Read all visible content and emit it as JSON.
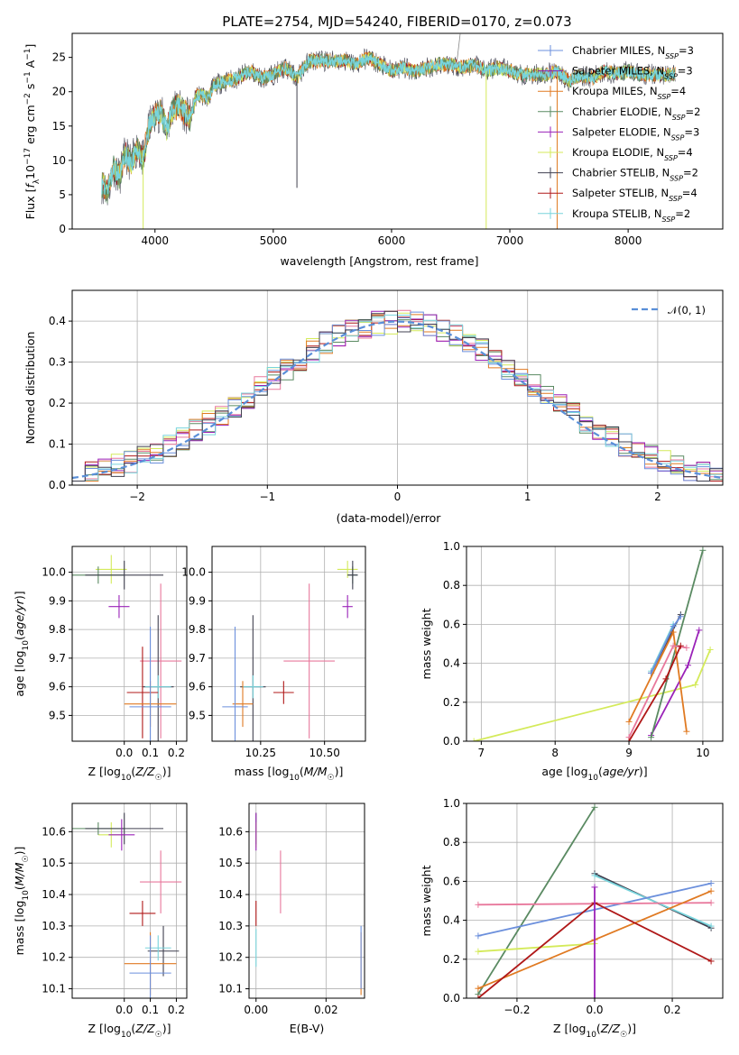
{
  "title": "PLATE=2754, MJD=54240, FIBERID=0170, z=0.073",
  "colors": {
    "Chabrier MILES": "#6b8fdc",
    "Salpeter MILES": "#8b22b0",
    "Kroupa MILES": "#e07a22",
    "Chabrier ELODIE": "#5a8a62",
    "Salpeter ELODIE": "#9a22b8",
    "Kroupa ELODIE": "#d4ea5a",
    "Chabrier STELIB": "#404050",
    "Salpeter STELIB": "#b01818",
    "Kroupa STELIB": "#78d4dc",
    "Extra pink": "#e8789c",
    "Normal curve": "#5a8fd8"
  },
  "chart_data": [
    {
      "type": "line",
      "xlabel": "wavelength [Angstrom, rest frame]",
      "ylabel": "Flux [f_λ10^-17 erg cm^-2 s^-1 A^-1]",
      "xlim": [
        3300,
        8800
      ],
      "ylim": [
        0,
        28.5
      ],
      "xticks": [
        4000,
        5000,
        6000,
        7000,
        8000
      ],
      "yticks": [
        0,
        5,
        10,
        15,
        20,
        25
      ],
      "legend": {
        "placement": "top-right",
        "entries": [
          {
            "name": "Chabrier MILES",
            "base": "Chabrier MILES, N",
            "sub": "SSP",
            "tail": "=3"
          },
          {
            "name": "Salpeter MILES",
            "base": "Salpeter MILES, N",
            "sub": "SSP",
            "tail": "=3"
          },
          {
            "name": "Kroupa MILES",
            "base": "Kroupa MILES, N",
            "sub": "SSP",
            "tail": "=4"
          },
          {
            "name": "Chabrier ELODIE",
            "base": "Chabrier ELODIE, N",
            "sub": "SSP",
            "tail": "=2"
          },
          {
            "name": "Salpeter ELODIE",
            "base": "Salpeter ELODIE, N",
            "sub": "SSP",
            "tail": "=3"
          },
          {
            "name": "Kroupa ELODIE",
            "base": "Kroupa ELODIE, N",
            "sub": "SSP",
            "tail": "=4"
          },
          {
            "name": "Chabrier STELIB",
            "base": "Chabrier STELIB, N",
            "sub": "SSP",
            "tail": "=2"
          },
          {
            "name": "Salpeter STELIB",
            "base": "Salpeter STELIB, N",
            "sub": "SSP",
            "tail": "=4"
          },
          {
            "name": "Kroupa STELIB",
            "base": "Kroupa STELIB, N",
            "sub": "SSP",
            "tail": "=2"
          }
        ]
      },
      "spectrum_x": [
        3550,
        3600,
        3650,
        3700,
        3750,
        3800,
        3850,
        3900,
        3950,
        4000,
        4050,
        4100,
        4150,
        4200,
        4250,
        4300,
        4350,
        4400,
        4450,
        4500,
        4600,
        4700,
        4800,
        4900,
        5000,
        5100,
        5200,
        5300,
        5400,
        5500,
        5600,
        5700,
        5800,
        5900,
        6000,
        6100,
        6200,
        6300,
        6400,
        6500,
        6600,
        6700,
        6800,
        6900,
        7000,
        7100,
        7200,
        7300,
        7400,
        7500,
        7600,
        7700,
        7800,
        7900,
        8000,
        8100,
        8200,
        8300,
        8400
      ],
      "spectrum_y": [
        6.5,
        5.5,
        9.0,
        7.5,
        11.0,
        9.5,
        12.0,
        10.0,
        15.0,
        16.5,
        17.0,
        14.5,
        17.5,
        18.0,
        17.0,
        16.0,
        19.5,
        19.5,
        19.0,
        21.0,
        21.5,
        22.0,
        23.0,
        22.0,
        22.5,
        23.5,
        22.0,
        24.5,
        24.5,
        24.5,
        24.5,
        24.0,
        25.0,
        24.0,
        23.0,
        23.5,
        23.0,
        23.5,
        24.0,
        24.0,
        23.5,
        24.0,
        23.0,
        23.5,
        23.0,
        22.5,
        22.5,
        22.5,
        23.0,
        21.5,
        22.5,
        22.0,
        23.0,
        22.5,
        23.0,
        22.5,
        22.5,
        22.5,
        22.5
      ]
    },
    {
      "type": "line",
      "xlabel": "(data-model)/error",
      "ylabel": "Normed distribution",
      "xlim": [
        -2.5,
        2.5
      ],
      "ylim": [
        0,
        0.475
      ],
      "xticks": [
        -2,
        -1,
        0,
        1,
        2
      ],
      "yticks": [
        0.0,
        0.1,
        0.2,
        0.3,
        0.4
      ],
      "grid": true,
      "legend": {
        "placement": "top-right",
        "entries": [
          "𝒩(0, 1)"
        ]
      },
      "bin_width": 0.1
    },
    {
      "type": "scatter",
      "xlabel": "Z [log10(Z/Z☉)]",
      "ylabel": "age [log10(age/yr)]",
      "xlim": [
        -0.2,
        0.24
      ],
      "ylim": [
        9.41,
        10.09
      ],
      "xticks": [
        0.0,
        0.1,
        0.2
      ],
      "yticks": [
        9.5,
        9.6,
        9.7,
        9.8,
        9.9,
        10.0
      ],
      "grid": true,
      "points": [
        {
          "series": "Kroupa ELODIE",
          "x": -0.05,
          "y": 10.01,
          "xerr": 0.06,
          "yerr": 0.05
        },
        {
          "series": "Chabrier ELODIE",
          "x": -0.1,
          "y": 9.99,
          "xerr": 0.1,
          "yerr": 0.03
        },
        {
          "series": "Chabrier STELIB",
          "x": 0.0,
          "y": 9.99,
          "xerr": 0.15,
          "yerr": 0.05
        },
        {
          "series": "Salpeter ELODIE",
          "x": -0.02,
          "y": 9.88,
          "xerr": 0.04,
          "yerr": 0.04
        },
        {
          "series": "Extra pink",
          "x": 0.14,
          "y": 9.69,
          "xerr": 0.08,
          "yerr": 0.27
        },
        {
          "series": "Chabrier STELIB",
          "x": 0.13,
          "y": 9.6,
          "xerr": 0.06,
          "yerr": 0.25
        },
        {
          "series": "Kroupa STELIB",
          "x": 0.13,
          "y": 9.6,
          "xerr": 0.05,
          "yerr": 0.04
        },
        {
          "series": "Salpeter STELIB",
          "x": 0.07,
          "y": 9.58,
          "xerr": 0.06,
          "yerr": 0.16
        },
        {
          "series": "Kroupa MILES",
          "x": 0.1,
          "y": 9.54,
          "xerr": 0.1,
          "yerr": 0.08
        },
        {
          "series": "Chabrier MILES",
          "x": 0.1,
          "y": 9.53,
          "xerr": 0.08,
          "yerr": 0.28
        }
      ]
    },
    {
      "type": "scatter",
      "xlabel": "mass [log10(M/M☉)]",
      "ylabel": "",
      "xlim": [
        10.06,
        10.66
      ],
      "ylim": [
        9.41,
        10.09
      ],
      "xticks": [
        10.25,
        10.5
      ],
      "yticks": [
        9.5,
        9.6,
        9.7,
        9.8,
        9.9,
        10.0
      ],
      "grid": true,
      "points": [
        {
          "series": "Kroupa ELODIE",
          "x": 10.59,
          "y": 10.01,
          "xerr": 0.04,
          "yerr": 0.03
        },
        {
          "series": "Chabrier ELODIE",
          "x": 10.61,
          "y": 9.99,
          "xerr": 0.02,
          "yerr": 0.03
        },
        {
          "series": "Chabrier STELIB",
          "x": 10.61,
          "y": 9.99,
          "xerr": 0.02,
          "yerr": 0.05
        },
        {
          "series": "Salpeter ELODIE",
          "x": 10.59,
          "y": 9.88,
          "xerr": 0.02,
          "yerr": 0.04
        },
        {
          "series": "Extra pink",
          "x": 10.44,
          "y": 9.69,
          "xerr": 0.1,
          "yerr": 0.27
        },
        {
          "series": "Chabrier STELIB",
          "x": 10.22,
          "y": 9.6,
          "xerr": 0.05,
          "yerr": 0.25
        },
        {
          "series": "Kroupa STELIB",
          "x": 10.22,
          "y": 9.6,
          "xerr": 0.04,
          "yerr": 0.04
        },
        {
          "series": "Salpeter STELIB",
          "x": 10.34,
          "y": 9.58,
          "xerr": 0.04,
          "yerr": 0.04
        },
        {
          "series": "Kroupa MILES",
          "x": 10.18,
          "y": 9.54,
          "xerr": 0.04,
          "yerr": 0.08
        },
        {
          "series": "Chabrier MILES",
          "x": 10.15,
          "y": 9.53,
          "xerr": 0.05,
          "yerr": 0.28
        }
      ]
    },
    {
      "type": "line",
      "xlabel": "age [log10(age/yr)]",
      "ylabel": "mass weight",
      "xlim": [
        6.8,
        10.27
      ],
      "ylim": [
        0,
        1
      ],
      "xticks": [
        7,
        8,
        9,
        10
      ],
      "yticks": [
        0.0,
        0.2,
        0.4,
        0.6,
        0.8,
        1.0
      ],
      "grid": true,
      "series": [
        {
          "name": "Kroupa ELODIE",
          "x": [
            6.9,
            9.9,
            10.1
          ],
          "y": [
            0.0,
            0.29,
            0.47
          ]
        },
        {
          "name": "Salpeter ELODIE",
          "x": [
            9.3,
            9.8,
            9.95
          ],
          "y": [
            0.03,
            0.39,
            0.57
          ]
        },
        {
          "name": "Chabrier ELODIE",
          "x": [
            9.3,
            10.0
          ],
          "y": [
            0.02,
            0.98
          ]
        },
        {
          "name": "Chabrier STELIB",
          "x": [
            9.3,
            9.7
          ],
          "y": [
            0.35,
            0.65
          ]
        },
        {
          "name": "Kroupa STELIB",
          "x": [
            9.3,
            9.6
          ],
          "y": [
            0.36,
            0.6
          ]
        },
        {
          "name": "Chabrier MILES",
          "x": [
            9.3,
            9.6,
            9.7
          ],
          "y": [
            0.35,
            0.59,
            0.64
          ]
        },
        {
          "name": "Kroupa MILES",
          "x": [
            9.0,
            9.6,
            9.78
          ],
          "y": [
            0.1,
            0.56,
            0.05
          ]
        },
        {
          "name": "Extra pink",
          "x": [
            9.0,
            9.6,
            9.78
          ],
          "y": [
            0.02,
            0.49,
            0.48
          ]
        },
        {
          "name": "Salpeter STELIB",
          "x": [
            9.0,
            9.5,
            9.7
          ],
          "y": [
            0.0,
            0.32,
            0.49
          ]
        }
      ]
    },
    {
      "type": "scatter",
      "xlabel": "Z [log10(Z/Z☉)]",
      "ylabel": "mass [log10(M/M☉)]",
      "xlim": [
        -0.2,
        0.24
      ],
      "ylim": [
        10.07,
        10.69
      ],
      "xticks": [
        0.0,
        0.1,
        0.2
      ],
      "yticks": [
        10.1,
        10.2,
        10.3,
        10.4,
        10.5,
        10.6
      ],
      "grid": true,
      "points": [
        {
          "series": "Kroupa ELODIE",
          "x": -0.05,
          "y": 10.59,
          "xerr": 0.05,
          "yerr": 0.04
        },
        {
          "series": "Chabrier ELODIE",
          "x": -0.1,
          "y": 10.61,
          "xerr": 0.1,
          "yerr": 0.02
        },
        {
          "series": "Chabrier STELIB",
          "x": 0.0,
          "y": 10.61,
          "xerr": 0.15,
          "yerr": 0.05
        },
        {
          "series": "Salpeter ELODIE",
          "x": -0.01,
          "y": 10.59,
          "xerr": 0.05,
          "yerr": 0.05
        },
        {
          "series": "Extra pink",
          "x": 0.14,
          "y": 10.44,
          "xerr": 0.08,
          "yerr": 0.1
        },
        {
          "series": "Salpeter STELIB",
          "x": 0.07,
          "y": 10.34,
          "xerr": 0.05,
          "yerr": 0.04
        },
        {
          "series": "Chabrier STELIB",
          "x": 0.15,
          "y": 10.22,
          "xerr": 0.06,
          "yerr": 0.08
        },
        {
          "series": "Kroupa STELIB",
          "x": 0.13,
          "y": 10.23,
          "xerr": 0.05,
          "yerr": 0.04
        },
        {
          "series": "Kroupa MILES",
          "x": 0.1,
          "y": 10.18,
          "xerr": 0.1,
          "yerr": 0.1
        },
        {
          "series": "Chabrier MILES",
          "x": 0.1,
          "y": 10.15,
          "xerr": 0.08,
          "yerr": 0.12
        }
      ]
    },
    {
      "type": "scatter",
      "xlabel": "E(B-V)",
      "ylabel": "",
      "xlim": [
        -0.002,
        0.031
      ],
      "ylim": [
        10.07,
        10.69
      ],
      "xticks": [
        0.0,
        0.02
      ],
      "yticks": [
        10.1,
        10.2,
        10.3,
        10.4,
        10.5,
        10.6
      ],
      "grid": true,
      "points": [
        {
          "series": "Chabrier ELODIE",
          "x": 0.0,
          "y": 10.61,
          "xerr": 0.0,
          "yerr": 0.05
        },
        {
          "series": "Kroupa ELODIE",
          "x": 0.0,
          "y": 10.59,
          "xerr": 0.0,
          "yerr": 0.04
        },
        {
          "series": "Salpeter ELODIE",
          "x": 0.0,
          "y": 10.6,
          "xerr": 0.0,
          "yerr": 0.06
        },
        {
          "series": "Extra pink",
          "x": 0.007,
          "y": 10.44,
          "xerr": 0.0,
          "yerr": 0.1
        },
        {
          "series": "Salpeter STELIB",
          "x": 0.0,
          "y": 10.34,
          "xerr": 0.0,
          "yerr": 0.04
        },
        {
          "series": "Kroupa STELIB",
          "x": 0.0,
          "y": 10.23,
          "xerr": 0.0,
          "yerr": 0.06
        },
        {
          "series": "Kroupa MILES",
          "x": 0.03,
          "y": 10.18,
          "xerr": 0.0,
          "yerr": 0.1
        },
        {
          "series": "Chabrier MILES",
          "x": 0.03,
          "y": 10.2,
          "xerr": 0.0,
          "yerr": 0.1
        }
      ]
    },
    {
      "type": "line",
      "xlabel": "Z [log10(Z/Z☉)]",
      "ylabel": "mass weight",
      "xlim": [
        -0.33,
        0.33
      ],
      "ylim": [
        0,
        1
      ],
      "xticks": [
        -0.2,
        0.0,
        0.2
      ],
      "yticks": [
        0.0,
        0.2,
        0.4,
        0.6,
        0.8,
        1.0
      ],
      "grid": true,
      "series": [
        {
          "name": "Chabrier ELODIE",
          "x": [
            -0.3,
            0.0
          ],
          "y": [
            0.02,
            0.98
          ]
        },
        {
          "name": "Chabrier STELIB",
          "x": [
            0.0,
            0.3
          ],
          "y": [
            0.64,
            0.36
          ]
        },
        {
          "name": "Kroupa STELIB",
          "x": [
            0.0,
            0.3
          ],
          "y": [
            0.63,
            0.37
          ]
        },
        {
          "name": "Chabrier MILES",
          "x": [
            -0.3,
            0.3
          ],
          "y": [
            0.32,
            0.59
          ]
        },
        {
          "name": "Extra pink",
          "x": [
            -0.3,
            0.3
          ],
          "y": [
            0.48,
            0.49
          ]
        },
        {
          "name": "Kroupa ELODIE",
          "x": [
            -0.3,
            0.0
          ],
          "y": [
            0.24,
            0.28
          ]
        },
        {
          "name": "Kroupa MILES",
          "x": [
            -0.3,
            0.0,
            0.3
          ],
          "y": [
            0.05,
            0.3,
            0.55
          ]
        },
        {
          "name": "Salpeter STELIB",
          "x": [
            -0.3,
            0.0,
            0.3
          ],
          "y": [
            0.0,
            0.49,
            0.19
          ]
        },
        {
          "name": "Salpeter ELODIE",
          "x": [
            0.0,
            0.0
          ],
          "y": [
            0.0,
            0.57
          ]
        }
      ]
    }
  ]
}
